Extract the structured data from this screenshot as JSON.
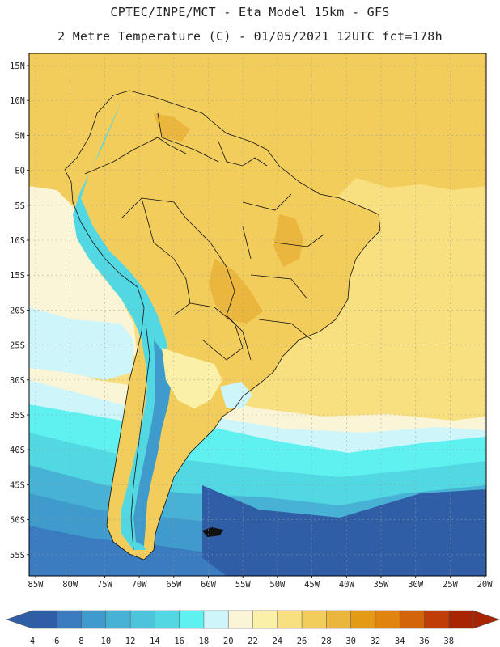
{
  "title": {
    "line1": "CPTEC/INPE/MCT  -   Eta Model 15km  -  GFS",
    "line2": "2 Metre Temperature (C) - 01/05/2021 12UTC fct=178h"
  },
  "map": {
    "lat_labels": [
      "15N",
      "10N",
      "5N",
      "EQ",
      "5S",
      "10S",
      "15S",
      "20S",
      "25S",
      "30S",
      "35S",
      "40S",
      "45S",
      "50S",
      "55S"
    ],
    "lon_labels": [
      "85W",
      "80W",
      "75W",
      "70W",
      "65W",
      "60W",
      "55W",
      "50W",
      "45W",
      "40W",
      "35W",
      "30W",
      "25W",
      "20W"
    ]
  },
  "colorbar": {
    "levels": [
      "4",
      "6",
      "8",
      "10",
      "12",
      "14",
      "16",
      "18",
      "20",
      "22",
      "24",
      "26",
      "28",
      "30",
      "32",
      "34",
      "36",
      "38"
    ],
    "colors": [
      "#2f5ea6",
      "#3a7cbf",
      "#3f9bcc",
      "#48b2d6",
      "#4cc5dc",
      "#52d8e2",
      "#5ff0f0",
      "#cdf5fa",
      "#fbf5d8",
      "#fbf0a8",
      "#f8df80",
      "#f3cd5c",
      "#ebb63e",
      "#e49a16",
      "#e0830f",
      "#d36409",
      "#c03e05",
      "#a82503"
    ]
  },
  "fields": {
    "colors": {
      "deep_blue": "#2f5ea6",
      "blue2": "#3a7cbf",
      "blue3": "#3f9bcc",
      "cyan1": "#48b2d6",
      "cyan2": "#52d8e2",
      "cyan3": "#5ff0f0",
      "pale": "#cdf5fa",
      "cream": "#fbf5d8",
      "yellow": "#fbf0a8",
      "yellow2": "#f8df80",
      "gold": "#f3cd5c",
      "orange": "#ebb63e",
      "orange2": "#e49a16"
    }
  }
}
